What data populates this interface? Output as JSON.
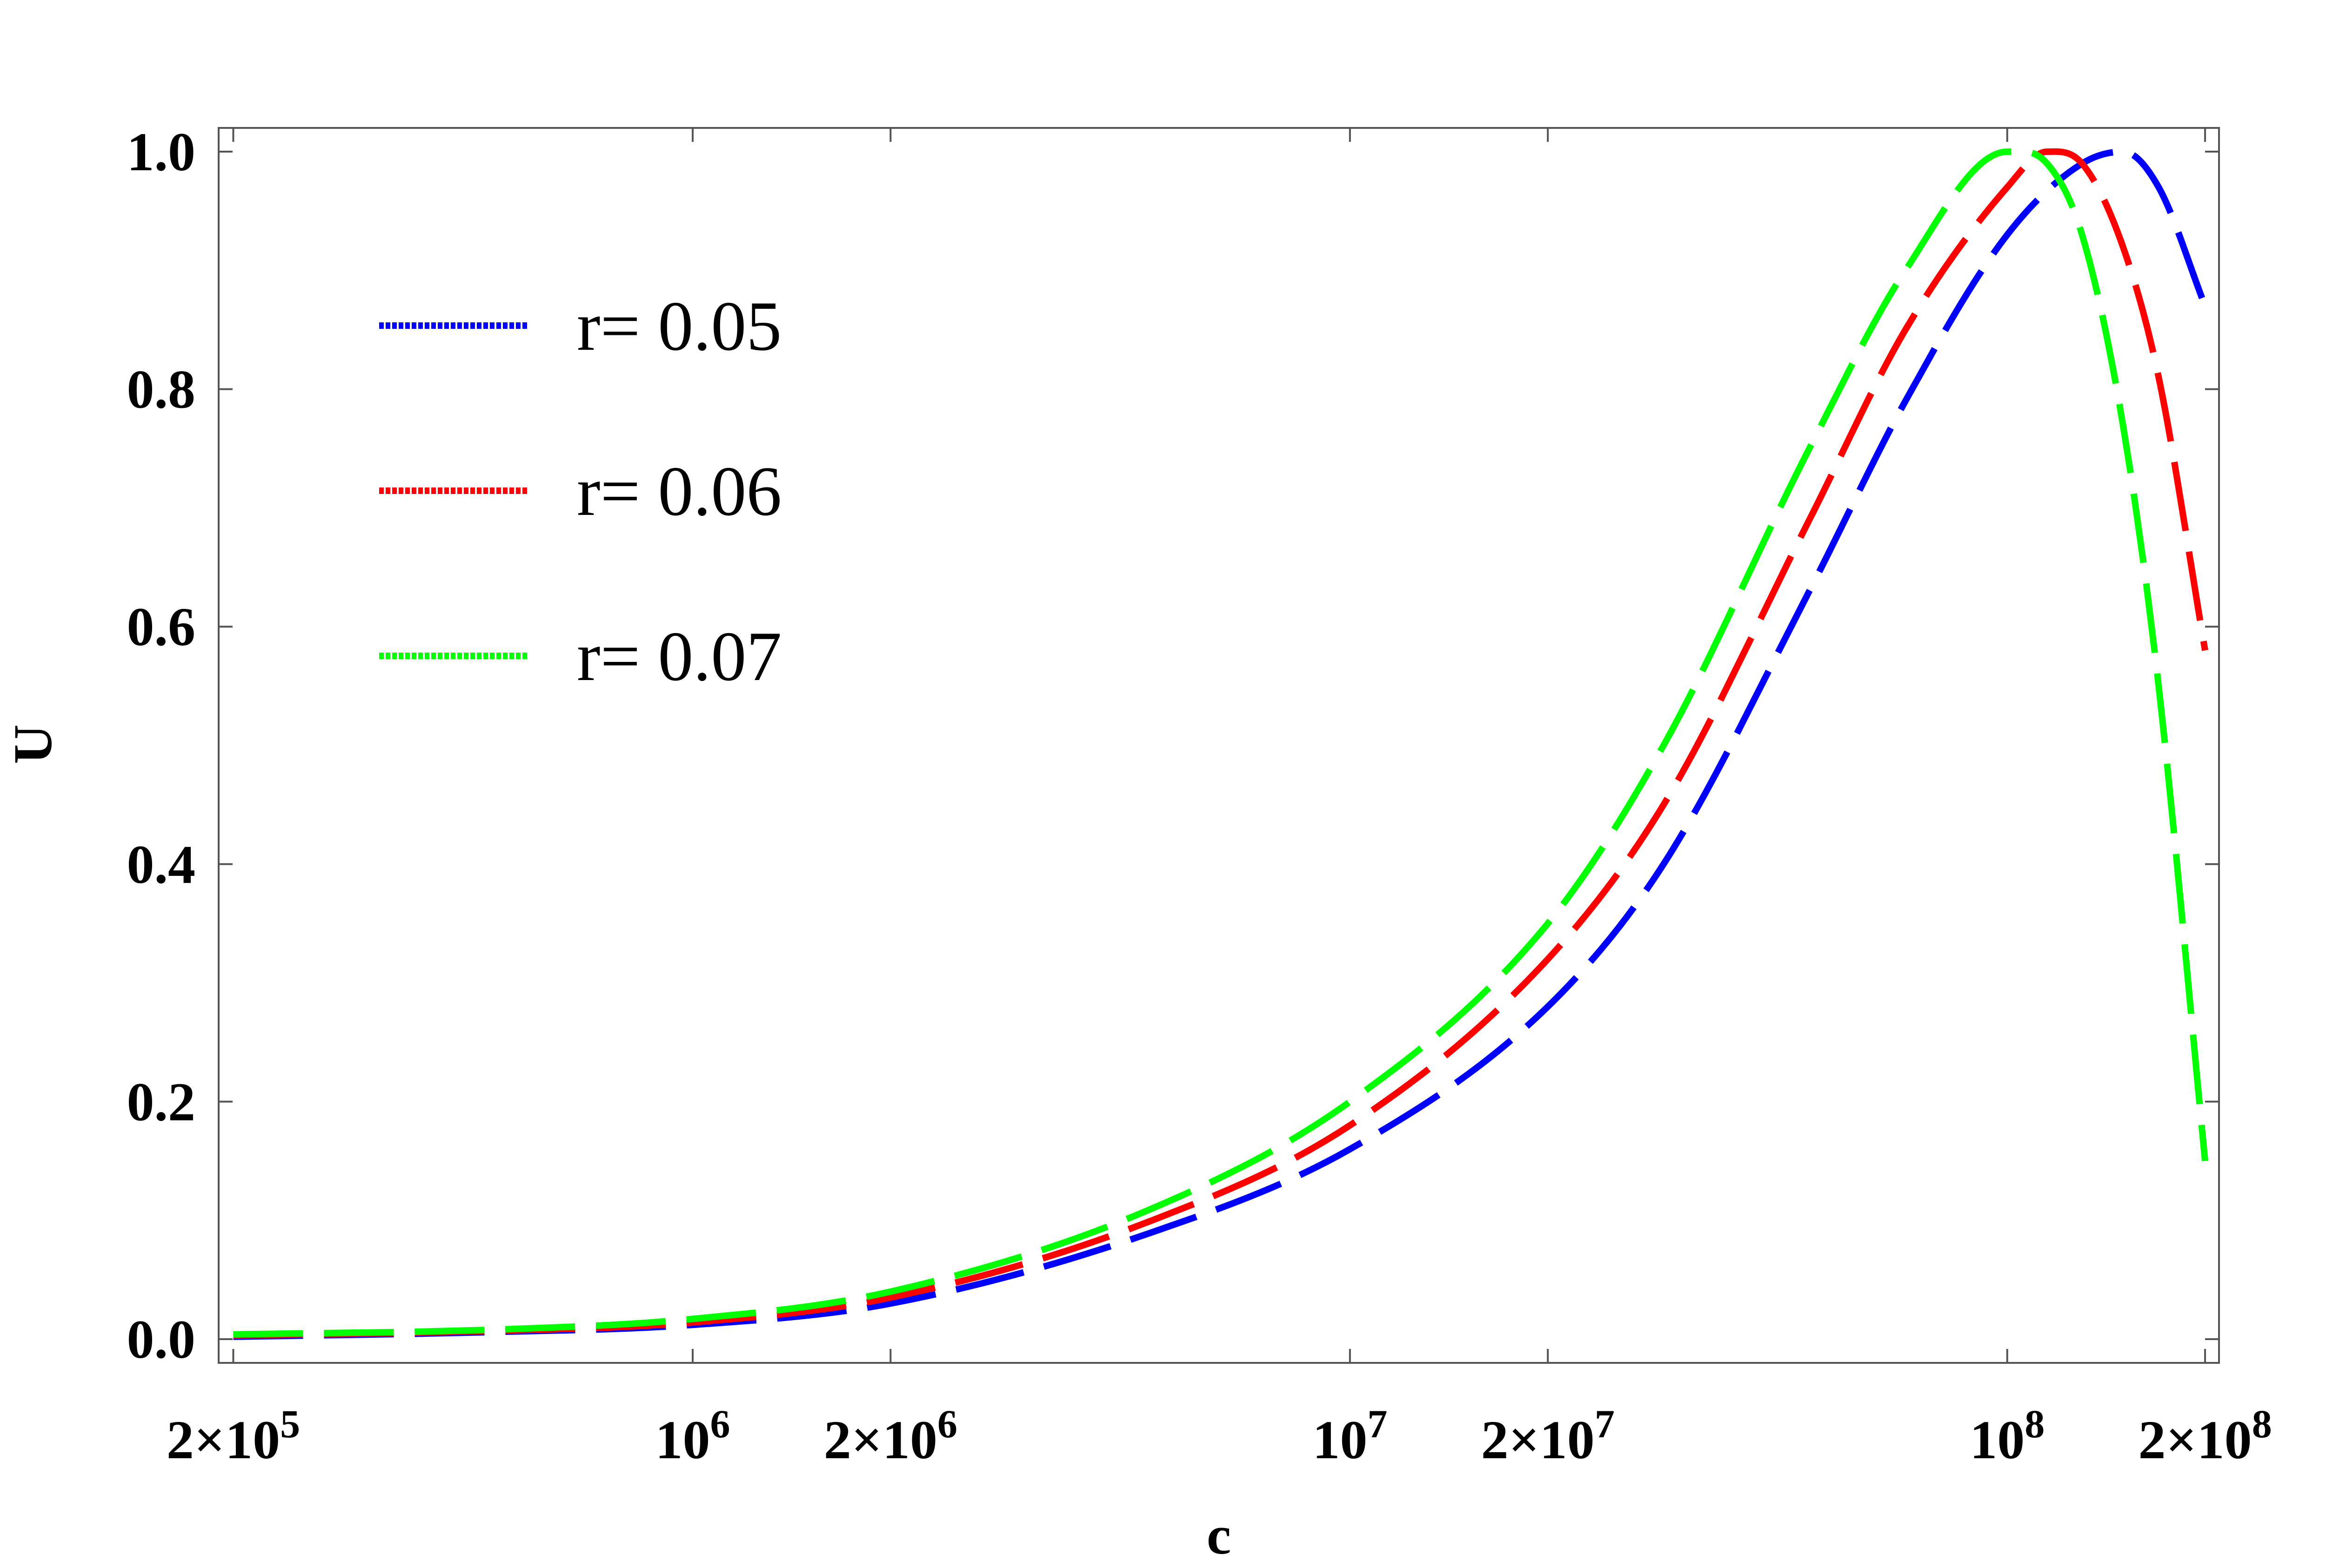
{
  "chart_data": {
    "type": "line",
    "xlabel": "c",
    "ylabel": "U",
    "xscale": "log",
    "xlim": [
      190000,
      210000000
    ],
    "ylim": [
      -0.02,
      1.02
    ],
    "grid": false,
    "legend_position": "top-left",
    "x_ticks": [
      {
        "value": 200000,
        "mantissa": "2×10",
        "exp": "5"
      },
      {
        "value": 1000000,
        "mantissa": "10",
        "exp": "6"
      },
      {
        "value": 2000000,
        "mantissa": "2×10",
        "exp": "6"
      },
      {
        "value": 10000000,
        "mantissa": "10",
        "exp": "7"
      },
      {
        "value": 20000000,
        "mantissa": "2×10",
        "exp": "7"
      },
      {
        "value": 100000000,
        "mantissa": "10",
        "exp": "8"
      },
      {
        "value": 200000000,
        "mantissa": "2×10",
        "exp": "8"
      }
    ],
    "y_ticks": [
      "0.0",
      "0.2",
      "0.4",
      "0.6",
      "0.8",
      "1.0"
    ],
    "y_tick_values": [
      0.0,
      0.2,
      0.4,
      0.6,
      0.8,
      1.0
    ],
    "series": [
      {
        "name": "r= 0.05",
        "color": "#0000ff",
        "x": [
          200000,
          500000,
          1000000,
          2000000,
          5000000,
          10000000,
          20000000,
          30000000,
          50000000,
          70000000,
          100000000,
          130000000,
          150000000,
          170000000,
          200000000
        ],
        "y": [
          0.002,
          0.006,
          0.012,
          0.03,
          0.09,
          0.16,
          0.28,
          0.4,
          0.63,
          0.79,
          0.93,
          0.99,
          1.0,
          0.97,
          0.87
        ]
      },
      {
        "name": "r= 0.06",
        "color": "#ff0000",
        "x": [
          200000,
          500000,
          1000000,
          2000000,
          5000000,
          10000000,
          20000000,
          30000000,
          50000000,
          70000000,
          100000000,
          115000000,
          130000000,
          150000000,
          170000000,
          200000000
        ],
        "y": [
          0.003,
          0.007,
          0.014,
          0.035,
          0.1,
          0.18,
          0.32,
          0.45,
          0.69,
          0.85,
          0.97,
          1.0,
          0.99,
          0.92,
          0.81,
          0.58
        ]
      },
      {
        "name": "r= 0.07",
        "color": "#00ff00",
        "x": [
          200000,
          500000,
          1000000,
          2000000,
          5000000,
          10000000,
          20000000,
          30000000,
          50000000,
          70000000,
          100000000,
          115000000,
          130000000,
          150000000,
          170000000,
          200000000
        ],
        "y": [
          0.004,
          0.008,
          0.017,
          0.04,
          0.11,
          0.2,
          0.35,
          0.5,
          0.75,
          0.9,
          1.0,
          0.99,
          0.93,
          0.77,
          0.55,
          0.15
        ]
      }
    ]
  }
}
